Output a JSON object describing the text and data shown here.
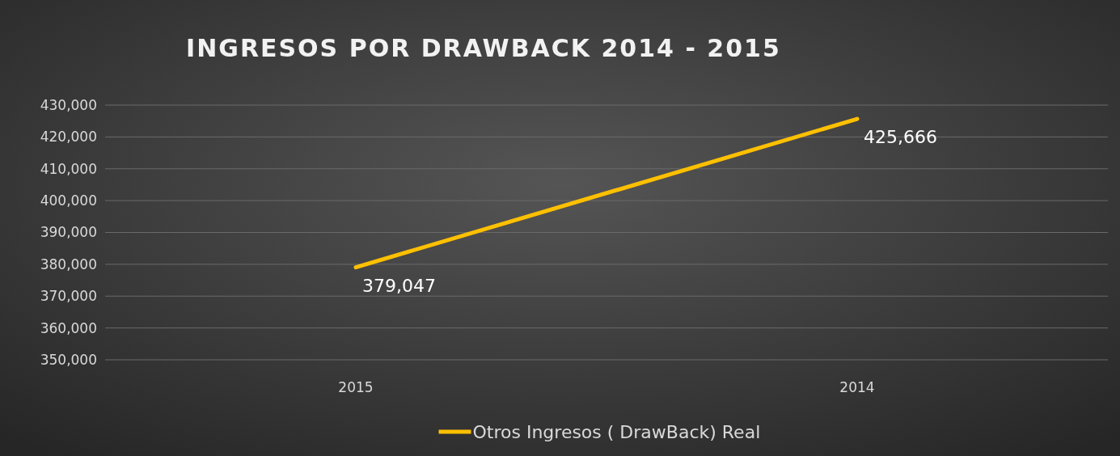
{
  "chart_data": {
    "type": "line",
    "title": "INGRESOS POR DRAWBACK 2014 - 2015",
    "categories": [
      "2015",
      "2014"
    ],
    "series": [
      {
        "name": "Otros Ingresos ( DrawBack) Real",
        "color": "#ffc000",
        "values": [
          379047,
          425666
        ],
        "value_labels": [
          "379,047",
          "425,666"
        ]
      }
    ],
    "ylim": [
      350000,
      430000
    ],
    "yticks": [
      {
        "value": 350000,
        "label": "350,000"
      },
      {
        "value": 360000,
        "label": "360,000"
      },
      {
        "value": 370000,
        "label": "370,000"
      },
      {
        "value": 380000,
        "label": "380,000"
      },
      {
        "value": 390000,
        "label": "390,000"
      },
      {
        "value": 400000,
        "label": "400,000"
      },
      {
        "value": 410000,
        "label": "410,000"
      },
      {
        "value": 420000,
        "label": "420,000"
      },
      {
        "value": 430000,
        "label": "430,000"
      }
    ],
    "grid": "y",
    "legend": "bottom",
    "marker": "none",
    "line_style": "solid"
  }
}
